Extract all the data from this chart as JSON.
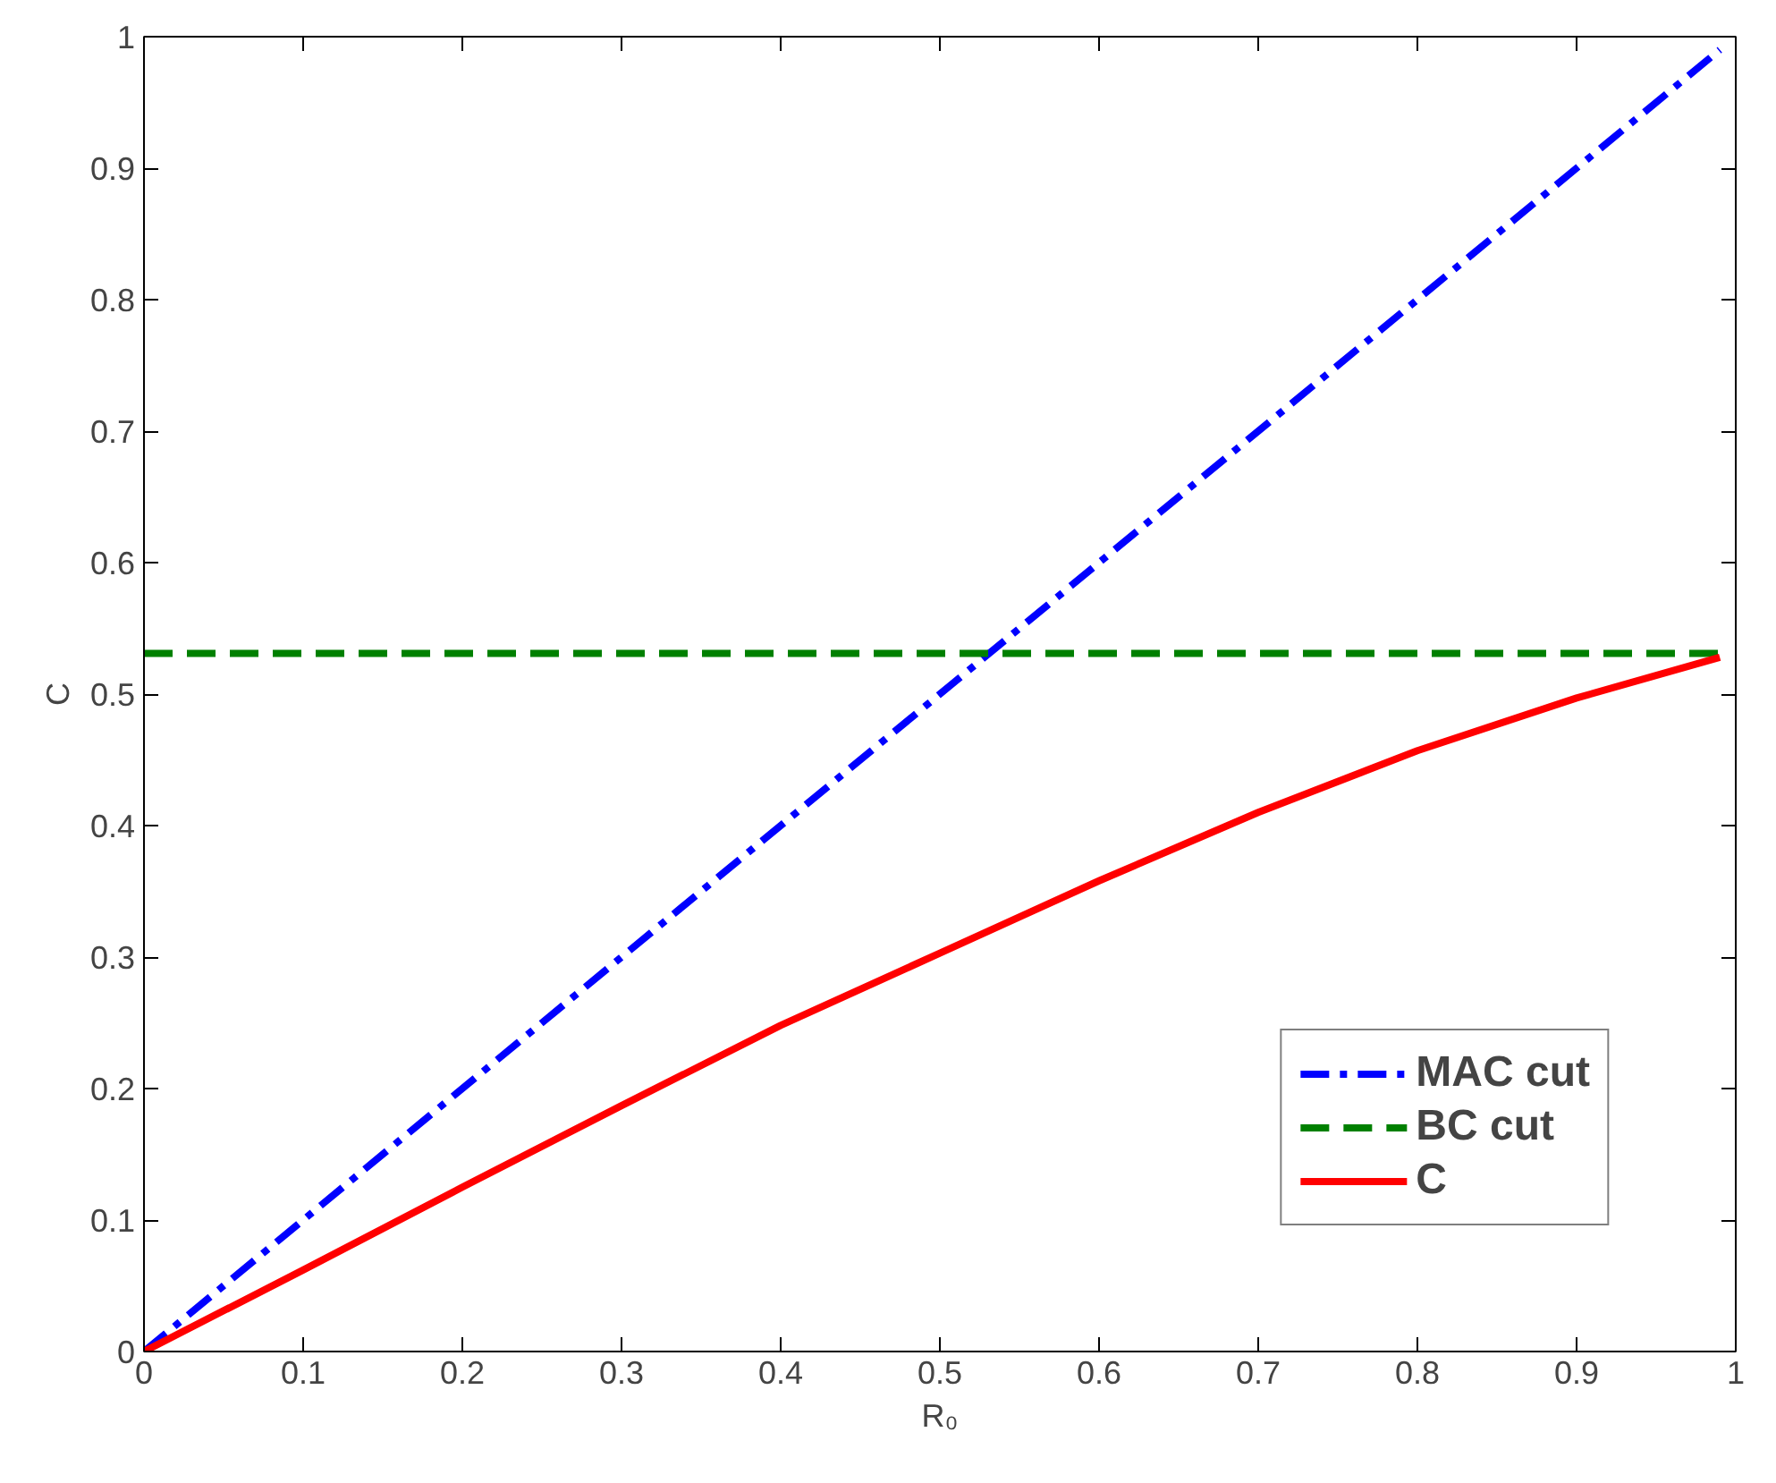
{
  "chart_data": {
    "type": "line",
    "xlabel": "R₀",
    "ylabel": "C",
    "xlim": [
      0,
      1
    ],
    "ylim": [
      0,
      1
    ],
    "xticks": [
      0,
      0.1,
      0.2,
      0.3,
      0.4,
      0.5,
      0.6,
      0.7,
      0.8,
      0.9,
      1
    ],
    "yticks": [
      0,
      0.1,
      0.2,
      0.3,
      0.4,
      0.5,
      0.6,
      0.7,
      0.8,
      0.9,
      1
    ],
    "grid": false,
    "legend": "bottom right",
    "marker": "none",
    "series": [
      {
        "name": "MAC cut",
        "color": "#0000ff",
        "line_style": "dashdot",
        "x": [
          0,
          0.99
        ],
        "values": [
          0,
          0.99
        ]
      },
      {
        "name": "BC cut",
        "color": "#008000",
        "line_style": "dashed",
        "x": [
          0,
          0.99
        ],
        "values": [
          0.531,
          0.531
        ]
      },
      {
        "name": "C",
        "color": "#ff0000",
        "line_style": "solid",
        "x": [
          0,
          0.1,
          0.2,
          0.3,
          0.4,
          0.5,
          0.6,
          0.7,
          0.8,
          0.9,
          0.99
        ],
        "values": [
          0,
          0.062,
          0.125,
          0.187,
          0.248,
          0.303,
          0.358,
          0.41,
          0.457,
          0.497,
          0.528
        ]
      }
    ]
  }
}
